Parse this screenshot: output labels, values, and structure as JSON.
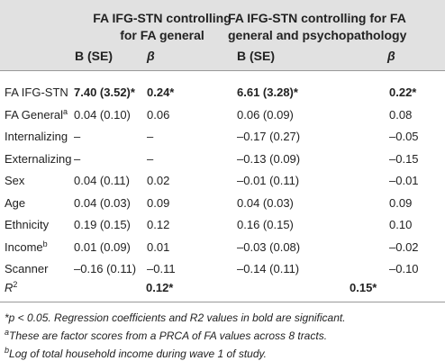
{
  "table": {
    "group_headers": [
      [
        "FA IFG-STN controlling",
        "for FA general"
      ],
      [
        "FA IFG-STN controlling for FA",
        "general and psychopathology"
      ]
    ],
    "sub_headers": [
      "B (SE)",
      "β",
      "B (SE)",
      "β"
    ],
    "rows": [
      {
        "label": "FA IFG-STN",
        "bold": true,
        "cells": [
          "7.40 (3.52)*",
          "0.24*",
          "6.61 (3.28)*",
          "0.22*"
        ]
      },
      {
        "label": "FA General",
        "sup": "a",
        "cells": [
          "0.04 (0.10)",
          "0.06",
          "0.06 (0.09)",
          "0.08"
        ]
      },
      {
        "label": "Internalizing",
        "cells": [
          "–",
          "–",
          "–0.17 (0.27)",
          "–0.05"
        ]
      },
      {
        "label": "Externalizing",
        "cells": [
          "–",
          "–",
          "–0.13 (0.09)",
          "–0.15"
        ]
      },
      {
        "label": "Sex",
        "cells": [
          "0.04 (0.11)",
          "0.02",
          "–0.01 (0.11)",
          "–0.01"
        ]
      },
      {
        "label": "Age",
        "cells": [
          "0.04 (0.03)",
          "0.09",
          "0.04 (0.03)",
          "0.09"
        ]
      },
      {
        "label": "Ethnicity",
        "cells": [
          "0.19 (0.15)",
          "0.12",
          "0.16 (0.15)",
          "0.10"
        ]
      },
      {
        "label": "Income",
        "sup": "b",
        "cells": [
          "0.01 (0.09)",
          "0.01",
          "–0.03 (0.08)",
          "–0.02"
        ]
      },
      {
        "label": "Scanner",
        "cells": [
          "–0.16 (0.11)",
          "–0.11",
          "–0.14 (0.11)",
          "–0.10"
        ]
      }
    ],
    "r2": {
      "label": "R",
      "sup": "2",
      "bold": true,
      "cells": [
        "0.12*",
        "0.15*"
      ]
    },
    "footnotes": [
      {
        "text": "*p < 0.05. Regression coefficients and R2 values in bold are significant."
      },
      {
        "sup": "a",
        "text": "These are factor scores from a PRCA of FA values across 8 tracts."
      },
      {
        "sup": "b",
        "text": "Log of total household income during wave 1 of study."
      }
    ]
  }
}
